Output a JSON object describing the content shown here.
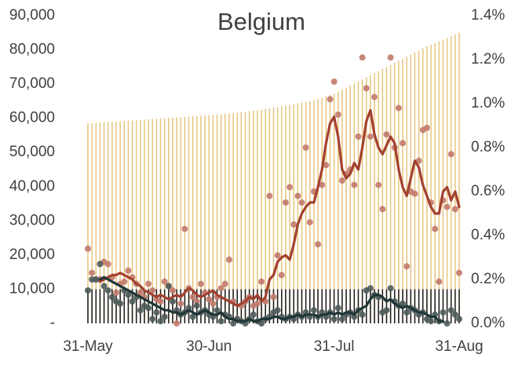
{
  "chart_data": {
    "type": "combo",
    "title": "Belgium",
    "categories": [
      "31-May",
      null,
      null,
      null,
      null,
      null,
      null,
      null,
      null,
      null,
      null,
      null,
      null,
      null,
      null,
      null,
      null,
      null,
      null,
      null,
      null,
      null,
      null,
      null,
      null,
      null,
      null,
      null,
      null,
      null,
      "30-Jun",
      null,
      null,
      null,
      null,
      null,
      null,
      null,
      null,
      null,
      null,
      null,
      null,
      null,
      null,
      null,
      null,
      null,
      null,
      null,
      null,
      null,
      null,
      null,
      null,
      null,
      null,
      null,
      null,
      null,
      null,
      "31-Jul",
      null,
      null,
      null,
      null,
      null,
      null,
      null,
      null,
      null,
      null,
      null,
      null,
      null,
      null,
      null,
      null,
      null,
      null,
      null,
      null,
      null,
      null,
      null,
      null,
      null,
      null,
      null,
      null,
      null,
      null,
      "31-Aug"
    ],
    "ylim": [
      0,
      90000
    ],
    "yticks": [
      {
        "value": 0,
        "label": "-"
      },
      {
        "value": 10000,
        "label": "10,000"
      },
      {
        "value": 20000,
        "label": "20,000"
      },
      {
        "value": 30000,
        "label": "30,000"
      },
      {
        "value": 40000,
        "label": "40,000"
      },
      {
        "value": 50000,
        "label": "50,000"
      },
      {
        "value": 60000,
        "label": "60,000"
      },
      {
        "value": 70000,
        "label": "70,000"
      },
      {
        "value": 80000,
        "label": "80,000"
      },
      {
        "value": 90000,
        "label": "90,000"
      }
    ],
    "y2lim": [
      0,
      1.4
    ],
    "y2ticks": [
      {
        "value": 0,
        "label": "0.0%"
      },
      {
        "value": 0.2,
        "label": "0.2%"
      },
      {
        "value": 0.4,
        "label": "0.4%"
      },
      {
        "value": 0.6,
        "label": "0.6%"
      },
      {
        "value": 0.8,
        "label": "0.8%"
      },
      {
        "value": 1.0,
        "label": "1.0%"
      },
      {
        "value": 1.2,
        "label": "1.2%"
      },
      {
        "value": 1.4,
        "label": "1.4%"
      }
    ],
    "series": [
      {
        "type": "bar",
        "color": "#e8c47e",
        "values": [
          58500,
          58580,
          58660,
          58740,
          58820,
          58900,
          58980,
          59060,
          59140,
          59220,
          59300,
          59380,
          59460,
          59540,
          59620,
          59700,
          59780,
          59860,
          59940,
          60020,
          60100,
          60180,
          60260,
          60340,
          60420,
          60500,
          60580,
          60660,
          60740,
          60820,
          60900,
          61000,
          61100,
          61200,
          61300,
          61400,
          61500,
          61650,
          61800,
          61950,
          62100,
          62250,
          62400,
          62550,
          62700,
          62900,
          63100,
          63300,
          63500,
          63700,
          63900,
          64100,
          64350,
          64600,
          64850,
          65100,
          65400,
          65700,
          66000,
          66400,
          66800,
          67200,
          67800,
          68400,
          69000,
          69600,
          70200,
          70800,
          71400,
          72000,
          72600,
          73200,
          73800,
          74400,
          75000,
          75600,
          76200,
          76800,
          77400,
          78000,
          78600,
          79200,
          79800,
          80400,
          81000,
          81500,
          82000,
          82500,
          83000,
          83500,
          84000,
          84500,
          85000
        ]
      },
      {
        "type": "bar",
        "color": "#1a1a1a",
        "values": [
          10000,
          10000,
          10000,
          10000,
          10000,
          10000,
          10000,
          10000,
          10000,
          10000,
          10000,
          10000,
          10000,
          10000,
          10000,
          10000,
          10000,
          10000,
          10000,
          10000,
          10000,
          10000,
          10000,
          10000,
          10000,
          10000,
          10000,
          10000,
          10000,
          10000,
          10000,
          10000,
          10000,
          10000,
          10000,
          10000,
          10000,
          10000,
          10000,
          10000,
          10000,
          10000,
          10000,
          10000,
          10000,
          10000,
          10000,
          10000,
          10000,
          10000,
          10000,
          10000,
          10000,
          10000,
          10000,
          10000,
          10000,
          10000,
          10000,
          10000,
          10000,
          10000,
          10000,
          10000,
          10000,
          10000,
          10000,
          10000,
          10000,
          10000,
          10000,
          10000,
          10000,
          10000,
          10000,
          10000,
          10000,
          10000,
          10000,
          10000,
          10000,
          10000,
          10000,
          10000,
          10000,
          10000,
          10000,
          10000,
          10000,
          10000,
          10000,
          10000,
          10000
        ]
      },
      {
        "type": "scatter",
        "axis": "y2",
        "color": "#c27a6b",
        "values": [
          0.34,
          0.23,
          0.2,
          0.2,
          0.28,
          0.27,
          0.21,
          0.14,
          0.18,
          0.19,
          0.24,
          0.21,
          0.18,
          0.14,
          0.12,
          0.18,
          0.15,
          0.11,
          0.1,
          0.19,
          0.17,
          0.15,
          0.0,
          0.09,
          0.43,
          0.16,
          0.12,
          0.1,
          0.18,
          0.14,
          0.11,
          0.09,
          0.12,
          0.16,
          0.18,
          0.29,
          0.1,
          0.02,
          0.08,
          0.1,
          0.12,
          0.08,
          0.09,
          0.19,
          0.1,
          0.58,
          0.12,
          0.31,
          0.22,
          0.55,
          0.62,
          0.45,
          0.58,
          0.55,
          0.8,
          0.46,
          0.6,
          0.36,
          0.63,
          0.72,
          1.02,
          1.1,
          0.95,
          0.65,
          0.68,
          0.7,
          0.63,
          0.85,
          1.21,
          1.07,
          0.85,
          1.03,
          0.63,
          0.52,
          0.86,
          1.21,
          0.8,
          0.98,
          0.82,
          0.26,
          0.6,
          0.59,
          0.74,
          0.88,
          0.89,
          0.55,
          0.43,
          0.19,
          0.56,
          0.53,
          0.77,
          0.52,
          0.23
        ]
      },
      {
        "type": "scatter",
        "axis": "y2",
        "color": "#4d5b5b",
        "values": [
          0.15,
          0.2,
          0.2,
          0.27,
          0.17,
          0.15,
          0.12,
          0.1,
          0.09,
          0.15,
          0.13,
          0.1,
          0.12,
          0.06,
          0.08,
          0.07,
          0.02,
          0.05,
          0.01,
          0.03,
          0.17,
          0.1,
          0.06,
          0.04,
          0.05,
          0.07,
          0.03,
          0.08,
          0.05,
          0.06,
          0.04,
          0.03,
          0.06,
          0.01,
          0.04,
          0.03,
          0.0,
          0.02,
          0.01,
          0.0,
          0.02,
          0.04,
          0.01,
          0.0,
          0.02,
          0.03,
          0.05,
          0.06,
          0.03,
          0.02,
          0.03,
          0.02,
          0.04,
          0.03,
          0.05,
          0.03,
          0.06,
          0.03,
          0.05,
          0.03,
          0.05,
          0.02,
          0.07,
          0.02,
          0.04,
          0.05,
          0.03,
          0.06,
          0.04,
          0.15,
          0.16,
          0.13,
          0.12,
          0.05,
          0.06,
          0.16,
          0.1,
          0.08,
          0.09,
          0.05,
          0.07,
          0.06,
          0.04,
          0.05,
          0.02,
          0.01,
          0.04,
          0.01,
          0.05,
          0.0,
          0.06,
          0.04,
          0.02
        ]
      },
      {
        "type": "line",
        "axis": "y2",
        "color": "#a3412f",
        "values": [
          null,
          null,
          null,
          0.19,
          0.2,
          0.21,
          0.22,
          0.22,
          0.23,
          0.22,
          0.21,
          0.2,
          0.18,
          0.17,
          0.15,
          0.14,
          0.13,
          0.12,
          0.13,
          0.12,
          0.11,
          0.12,
          0.13,
          0.12,
          0.14,
          0.16,
          0.15,
          0.13,
          0.12,
          0.13,
          0.14,
          0.15,
          0.13,
          0.12,
          0.11,
          0.1,
          0.09,
          0.08,
          0.09,
          0.1,
          0.12,
          0.11,
          0.13,
          0.1,
          0.12,
          0.2,
          0.22,
          0.28,
          0.3,
          0.31,
          0.29,
          0.36,
          0.45,
          0.5,
          0.53,
          0.55,
          0.55,
          0.62,
          0.7,
          0.82,
          0.91,
          0.94,
          0.85,
          0.7,
          0.66,
          0.68,
          0.73,
          0.7,
          0.8,
          0.92,
          0.97,
          0.86,
          0.8,
          0.77,
          0.81,
          0.85,
          0.82,
          0.7,
          0.62,
          0.58,
          0.66,
          0.74,
          0.71,
          0.63,
          0.58,
          0.53,
          0.5,
          0.5,
          0.6,
          0.62,
          0.56,
          0.6,
          0.53
        ]
      },
      {
        "type": "line",
        "axis": "y2",
        "color": "#1f3636",
        "values": [
          null,
          null,
          null,
          0.2,
          0.21,
          0.2,
          0.19,
          0.18,
          0.17,
          0.16,
          0.15,
          0.14,
          0.13,
          0.12,
          0.11,
          0.1,
          0.09,
          0.08,
          0.07,
          0.06,
          0.06,
          0.05,
          0.05,
          0.04,
          0.05,
          0.06,
          0.05,
          0.04,
          0.05,
          0.06,
          0.05,
          0.04,
          0.04,
          0.05,
          0.03,
          0.02,
          0.02,
          0.01,
          0.01,
          0.01,
          0.02,
          0.01,
          0.01,
          0.02,
          0.02,
          0.02,
          0.03,
          0.03,
          0.02,
          0.02,
          0.03,
          0.03,
          0.04,
          0.03,
          0.04,
          0.04,
          0.04,
          0.03,
          0.04,
          0.04,
          0.05,
          0.04,
          0.05,
          0.04,
          0.05,
          0.05,
          0.04,
          0.06,
          0.07,
          0.08,
          0.11,
          0.13,
          0.13,
          0.12,
          0.1,
          0.11,
          0.09,
          0.08,
          0.07,
          0.08,
          0.07,
          0.06,
          0.05,
          0.05,
          0.04,
          0.03,
          0.03,
          0.01,
          0.01,
          null,
          null,
          null,
          null
        ]
      }
    ]
  }
}
